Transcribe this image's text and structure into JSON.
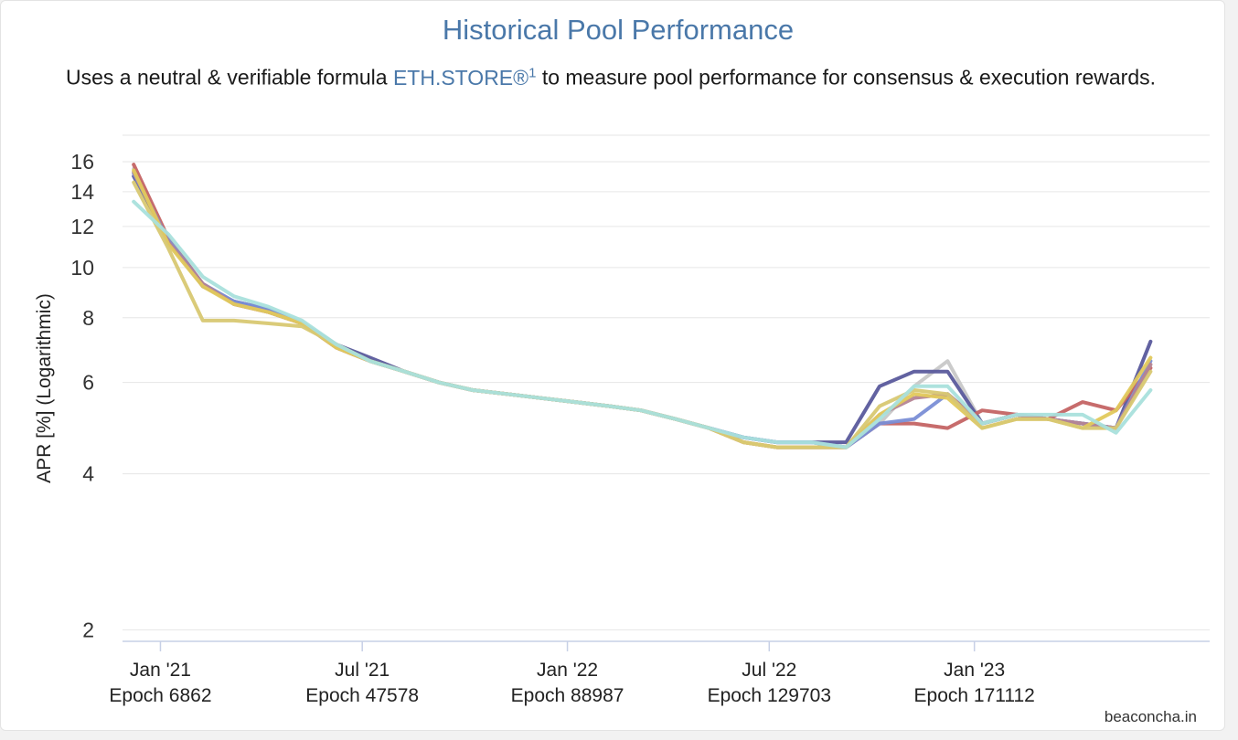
{
  "title": "Historical Pool Performance",
  "subtitle_pre": "Uses a neutral & verifiable formula ",
  "subtitle_link": "ETH.STORE®",
  "subtitle_sup": "1",
  "subtitle_post": " to measure pool performance for consensus & execution rewards.",
  "credit": "beaconcha.in",
  "chart_data": {
    "type": "line",
    "title": "Historical Pool Performance",
    "ylabel": "APR [%] (Logarithmic)",
    "y_scale": "logarithmic",
    "ylim": [
      1.9,
      18
    ],
    "y_ticks": [
      2,
      4,
      6,
      8,
      10,
      12,
      14,
      16
    ],
    "x_ticks": [
      {
        "line1": "Jan '21",
        "line2": "Epoch 6862",
        "date": "2021-01-01"
      },
      {
        "line1": "Jul '21",
        "line2": "Epoch 47578",
        "date": "2021-07-01"
      },
      {
        "line1": "Jan '22",
        "line2": "Epoch 88987",
        "date": "2022-01-01"
      },
      {
        "line1": "Jul '22",
        "line2": "Epoch 129703",
        "date": "2022-07-01"
      },
      {
        "line1": "Jan '23",
        "line2": "Epoch 171112",
        "date": "2023-01-01"
      }
    ],
    "x": [
      "2020-12-08",
      "2021-01-08",
      "2021-02-08",
      "2021-03-08",
      "2021-04-08",
      "2021-05-08",
      "2021-06-08",
      "2021-07-08",
      "2021-08-08",
      "2021-09-08",
      "2021-10-08",
      "2021-11-08",
      "2021-12-08",
      "2022-01-08",
      "2022-02-08",
      "2022-03-08",
      "2022-04-08",
      "2022-05-08",
      "2022-06-08",
      "2022-07-08",
      "2022-08-08",
      "2022-09-08",
      "2022-10-08",
      "2022-11-08",
      "2022-12-08",
      "2023-01-08",
      "2023-02-08",
      "2023-03-08",
      "2023-04-08",
      "2023-05-08",
      "2023-06-08"
    ],
    "grid": true,
    "legend": "none",
    "series": [
      {
        "color": "#c8c8c8",
        "values": [
          15.5,
          11.2,
          9.3,
          8.6,
          8.3,
          7.8,
          7.1,
          6.6,
          6.3,
          6.0,
          5.8,
          5.7,
          5.6,
          5.5,
          5.4,
          5.3,
          5.1,
          4.9,
          4.7,
          4.6,
          4.6,
          4.5,
          5.0,
          5.9,
          6.6,
          5.0,
          5.2,
          5.1,
          5.0,
          4.9,
          6.5
        ]
      },
      {
        "color": "#5a5a9c",
        "values": [
          15.0,
          11.3,
          9.2,
          8.6,
          8.3,
          7.8,
          7.1,
          6.7,
          6.3,
          6.0,
          5.8,
          5.7,
          5.6,
          5.5,
          5.4,
          5.3,
          5.1,
          4.9,
          4.7,
          4.6,
          4.6,
          4.6,
          5.9,
          6.3,
          6.3,
          5.0,
          5.2,
          5.1,
          5.0,
          4.9,
          7.2
        ]
      },
      {
        "color": "#c46464",
        "values": [
          15.8,
          11.4,
          9.3,
          8.5,
          8.2,
          7.8,
          7.0,
          6.6,
          6.3,
          6.0,
          5.8,
          5.7,
          5.6,
          5.5,
          5.4,
          5.3,
          5.1,
          4.9,
          4.6,
          4.5,
          4.5,
          4.5,
          5.0,
          5.0,
          4.9,
          5.3,
          5.2,
          5.1,
          5.5,
          5.3,
          6.4
        ]
      },
      {
        "color": "#7a8ed6",
        "values": [
          15.2,
          11.3,
          9.3,
          8.6,
          8.3,
          7.8,
          7.1,
          6.6,
          6.3,
          6.0,
          5.8,
          5.7,
          5.6,
          5.5,
          5.4,
          5.3,
          5.1,
          4.9,
          4.7,
          4.6,
          4.6,
          4.5,
          5.0,
          5.1,
          5.7,
          5.0,
          5.2,
          5.1,
          5.0,
          4.9,
          6.6
        ]
      },
      {
        "color": "#b58494",
        "values": [
          15.3,
          11.2,
          9.3,
          8.5,
          8.2,
          7.8,
          7.0,
          6.6,
          6.3,
          6.0,
          5.8,
          5.7,
          5.6,
          5.5,
          5.4,
          5.3,
          5.1,
          4.9,
          4.6,
          4.5,
          4.5,
          4.5,
          5.2,
          5.6,
          5.7,
          5.0,
          5.2,
          5.1,
          5.0,
          4.9,
          6.5
        ]
      },
      {
        "color": "#e1c95c",
        "values": [
          15.4,
          11.1,
          9.2,
          8.5,
          8.2,
          7.8,
          7.0,
          6.6,
          6.3,
          6.0,
          5.8,
          5.7,
          5.6,
          5.5,
          5.4,
          5.3,
          5.1,
          4.9,
          4.6,
          4.5,
          4.5,
          4.5,
          5.2,
          5.7,
          5.6,
          4.9,
          5.1,
          5.1,
          4.9,
          5.3,
          6.7
        ]
      },
      {
        "color": "#d8c872",
        "values": [
          14.6,
          10.9,
          7.9,
          7.9,
          7.8,
          7.7,
          7.1,
          6.6,
          6.3,
          6.0,
          5.8,
          5.7,
          5.6,
          5.5,
          5.4,
          5.3,
          5.1,
          4.9,
          4.6,
          4.5,
          4.5,
          4.5,
          5.4,
          5.8,
          5.7,
          4.9,
          5.1,
          5.1,
          4.9,
          4.9,
          6.3
        ]
      },
      {
        "color": "#a9e0dc",
        "values": [
          13.4,
          11.6,
          9.6,
          8.8,
          8.4,
          7.9,
          7.1,
          6.6,
          6.3,
          6.0,
          5.8,
          5.7,
          5.6,
          5.5,
          5.4,
          5.3,
          5.1,
          4.9,
          4.7,
          4.6,
          4.6,
          4.5,
          5.1,
          5.9,
          5.9,
          5.0,
          5.2,
          5.2,
          5.2,
          4.8,
          5.8
        ]
      }
    ]
  }
}
